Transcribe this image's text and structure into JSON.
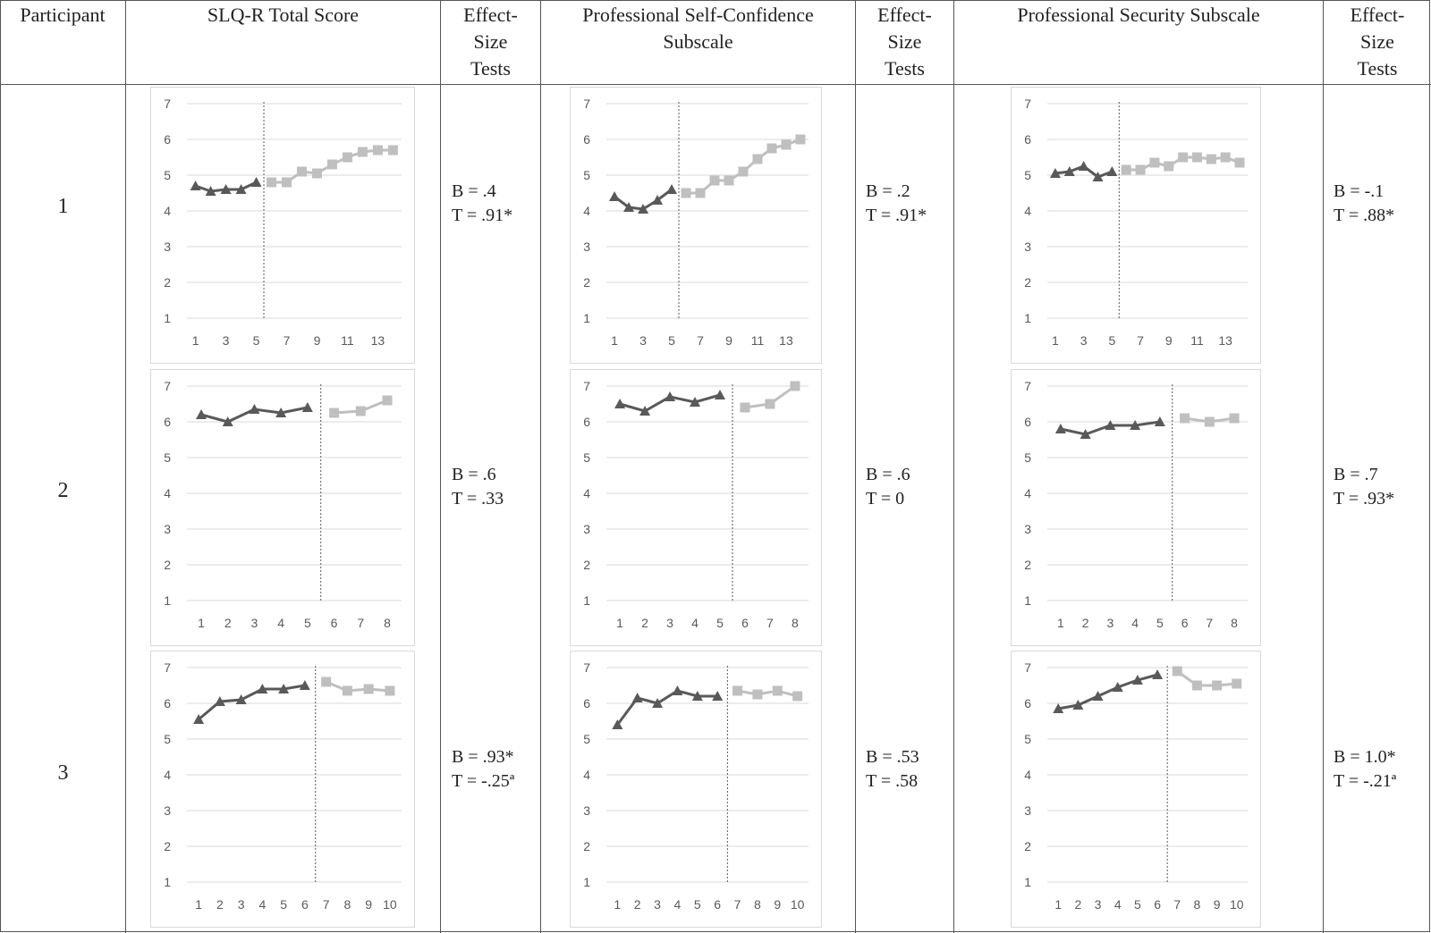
{
  "headers": {
    "participant": "Participant",
    "total": "SLQ-R Total Score",
    "es1": "Effect-\nSize\nTests",
    "confidence": "Professional Self-Confidence\nSubscale",
    "es2": "Effect-\nSize\nTests",
    "security": "Professional Security Subscale",
    "es3": "Effect-\nSize\nTests"
  },
  "participants": [
    "1",
    "2",
    "3"
  ],
  "effect_sizes": [
    [
      {
        "b": "B =  .4",
        "t": "T =  .91*"
      },
      {
        "b": "B = .2",
        "t": "T = .91*"
      },
      {
        "b": "B = -.1",
        "t": "T = .88*"
      }
    ],
    [
      {
        "b": "B = .6",
        "t": "T = .33"
      },
      {
        "b": "B = .6",
        "t": "T = 0"
      },
      {
        "b": "B = .7",
        "t": "T = .93*"
      }
    ],
    [
      {
        "b": "B = .93*",
        "t": "T = -.25ª"
      },
      {
        "b": "B = .53",
        "t": "T = .58"
      },
      {
        "b": "B = 1.0*",
        "t": "T = -.21ª"
      }
    ]
  ],
  "colors": {
    "baseline": "#595959",
    "intervention": "#bfbfbf",
    "grid": "#d9d9d9",
    "phase_line": "#595959"
  },
  "chart_data": [
    {
      "type": "line",
      "participant": "1",
      "measure": "SLQ-R Total Score",
      "ylim": [
        1,
        7
      ],
      "yticks": [
        1,
        2,
        3,
        4,
        5,
        6,
        7
      ],
      "x": [
        1,
        2,
        3,
        4,
        5,
        6,
        7,
        8,
        9,
        10,
        11,
        12,
        13,
        14
      ],
      "xticklabels": [
        "1",
        "3",
        "5",
        "7",
        "9",
        "11",
        "13"
      ],
      "phase_change_after": 5,
      "series": [
        {
          "marker": "triangle",
          "x": [
            1,
            2,
            3,
            4,
            5
          ],
          "values": [
            4.7,
            4.55,
            4.6,
            4.6,
            4.8
          ]
        },
        {
          "marker": "square",
          "x": [
            6,
            7,
            8,
            9,
            10,
            11,
            12,
            13,
            14
          ],
          "values": [
            4.8,
            4.8,
            5.1,
            5.05,
            5.3,
            5.5,
            5.65,
            5.7,
            5.7
          ]
        }
      ]
    },
    {
      "type": "line",
      "participant": "1",
      "measure": "Professional Self-Confidence Subscale",
      "ylim": [
        1,
        7
      ],
      "yticks": [
        1,
        2,
        3,
        4,
        5,
        6,
        7
      ],
      "x": [
        1,
        2,
        3,
        4,
        5,
        6,
        7,
        8,
        9,
        10,
        11,
        12,
        13,
        14
      ],
      "xticklabels": [
        "1",
        "3",
        "5",
        "7",
        "9",
        "11",
        "13"
      ],
      "phase_change_after": 5,
      "series": [
        {
          "marker": "triangle",
          "x": [
            1,
            2,
            3,
            4,
            5
          ],
          "values": [
            4.4,
            4.1,
            4.05,
            4.3,
            4.6
          ]
        },
        {
          "marker": "square",
          "x": [
            6,
            7,
            8,
            9,
            10,
            11,
            12,
            13,
            14
          ],
          "values": [
            4.5,
            4.5,
            4.85,
            4.85,
            5.1,
            5.45,
            5.75,
            5.85,
            6.0
          ]
        }
      ]
    },
    {
      "type": "line",
      "participant": "1",
      "measure": "Professional Security Subscale",
      "ylim": [
        1,
        7
      ],
      "yticks": [
        1,
        2,
        3,
        4,
        5,
        6,
        7
      ],
      "x": [
        1,
        2,
        3,
        4,
        5,
        6,
        7,
        8,
        9,
        10,
        11,
        12,
        13,
        14
      ],
      "xticklabels": [
        "1",
        "3",
        "5",
        "7",
        "9",
        "11",
        "13"
      ],
      "phase_change_after": 5,
      "series": [
        {
          "marker": "triangle",
          "x": [
            1,
            2,
            3,
            4,
            5
          ],
          "values": [
            5.05,
            5.1,
            5.25,
            4.95,
            5.1
          ]
        },
        {
          "marker": "square",
          "x": [
            6,
            7,
            8,
            9,
            10,
            11,
            12,
            13,
            14
          ],
          "values": [
            5.15,
            5.15,
            5.35,
            5.25,
            5.5,
            5.5,
            5.45,
            5.5,
            5.35
          ]
        }
      ]
    },
    {
      "type": "line",
      "participant": "2",
      "measure": "SLQ-R Total Score",
      "ylim": [
        1,
        7
      ],
      "yticks": [
        1,
        2,
        3,
        4,
        5,
        6,
        7
      ],
      "x": [
        1,
        2,
        3,
        4,
        5,
        6,
        7,
        8
      ],
      "xticklabels": [
        "1",
        "2",
        "3",
        "4",
        "5",
        "6",
        "7",
        "8"
      ],
      "phase_change_after": 5,
      "series": [
        {
          "marker": "triangle",
          "x": [
            1,
            2,
            3,
            4,
            5
          ],
          "values": [
            6.2,
            6.0,
            6.35,
            6.25,
            6.4
          ]
        },
        {
          "marker": "square",
          "x": [
            6,
            7,
            8
          ],
          "values": [
            6.25,
            6.3,
            6.6
          ]
        }
      ]
    },
    {
      "type": "line",
      "participant": "2",
      "measure": "Professional Self-Confidence Subscale",
      "ylim": [
        1,
        7
      ],
      "yticks": [
        1,
        2,
        3,
        4,
        5,
        6,
        7
      ],
      "x": [
        1,
        2,
        3,
        4,
        5,
        6,
        7,
        8
      ],
      "xticklabels": [
        "1",
        "2",
        "3",
        "4",
        "5",
        "6",
        "7",
        "8"
      ],
      "phase_change_after": 5,
      "series": [
        {
          "marker": "triangle",
          "x": [
            1,
            2,
            3,
            4,
            5
          ],
          "values": [
            6.5,
            6.3,
            6.7,
            6.55,
            6.75
          ]
        },
        {
          "marker": "square",
          "x": [
            6,
            7,
            8
          ],
          "values": [
            6.4,
            6.5,
            7.0
          ]
        }
      ]
    },
    {
      "type": "line",
      "participant": "2",
      "measure": "Professional Security Subscale",
      "ylim": [
        1,
        7
      ],
      "yticks": [
        1,
        2,
        3,
        4,
        5,
        6,
        7
      ],
      "x": [
        1,
        2,
        3,
        4,
        5,
        6,
        7,
        8
      ],
      "xticklabels": [
        "1",
        "2",
        "3",
        "4",
        "5",
        "6",
        "7",
        "8"
      ],
      "phase_change_after": 5,
      "series": [
        {
          "marker": "triangle",
          "x": [
            1,
            2,
            3,
            4,
            5
          ],
          "values": [
            5.8,
            5.65,
            5.9,
            5.9,
            6.0
          ]
        },
        {
          "marker": "square",
          "x": [
            6,
            7,
            8
          ],
          "values": [
            6.1,
            6.0,
            6.1
          ]
        }
      ]
    },
    {
      "type": "line",
      "participant": "3",
      "measure": "SLQ-R Total Score",
      "ylim": [
        1,
        7
      ],
      "yticks": [
        1,
        2,
        3,
        4,
        5,
        6,
        7
      ],
      "x": [
        1,
        2,
        3,
        4,
        5,
        6,
        7,
        8,
        9,
        10
      ],
      "xticklabels": [
        "1",
        "2",
        "3",
        "4",
        "5",
        "6",
        "7",
        "8",
        "9",
        "10"
      ],
      "phase_change_after": 6,
      "series": [
        {
          "marker": "triangle",
          "x": [
            1,
            2,
            3,
            4,
            5,
            6
          ],
          "values": [
            5.55,
            6.05,
            6.1,
            6.4,
            6.4,
            6.5
          ]
        },
        {
          "marker": "square",
          "x": [
            7,
            8,
            9,
            10
          ],
          "values": [
            6.6,
            6.35,
            6.4,
            6.35
          ]
        }
      ]
    },
    {
      "type": "line",
      "participant": "3",
      "measure": "Professional Self-Confidence Subscale",
      "ylim": [
        1,
        7
      ],
      "yticks": [
        1,
        2,
        3,
        4,
        5,
        6,
        7
      ],
      "x": [
        1,
        2,
        3,
        4,
        5,
        6,
        7,
        8,
        9,
        10
      ],
      "xticklabels": [
        "1",
        "2",
        "3",
        "4",
        "5",
        "6",
        "7",
        "8",
        "9",
        "10"
      ],
      "phase_change_after": 6,
      "series": [
        {
          "marker": "triangle",
          "x": [
            1,
            2,
            3,
            4,
            5,
            6
          ],
          "values": [
            5.4,
            6.15,
            6.0,
            6.35,
            6.2,
            6.2
          ]
        },
        {
          "marker": "square",
          "x": [
            7,
            8,
            9,
            10
          ],
          "values": [
            6.35,
            6.25,
            6.35,
            6.2
          ]
        }
      ]
    },
    {
      "type": "line",
      "participant": "3",
      "measure": "Professional Security Subscale",
      "ylim": [
        1,
        7
      ],
      "yticks": [
        1,
        2,
        3,
        4,
        5,
        6,
        7
      ],
      "x": [
        1,
        2,
        3,
        4,
        5,
        6,
        7,
        8,
        9,
        10
      ],
      "xticklabels": [
        "1",
        "2",
        "3",
        "4",
        "5",
        "6",
        "7",
        "8",
        "9",
        "10"
      ],
      "phase_change_after": 6,
      "series": [
        {
          "marker": "triangle",
          "x": [
            1,
            2,
            3,
            4,
            5,
            6
          ],
          "values": [
            5.85,
            5.95,
            6.2,
            6.45,
            6.65,
            6.8
          ]
        },
        {
          "marker": "square",
          "x": [
            7,
            8,
            9,
            10
          ],
          "values": [
            6.9,
            6.5,
            6.5,
            6.55
          ]
        }
      ]
    }
  ]
}
